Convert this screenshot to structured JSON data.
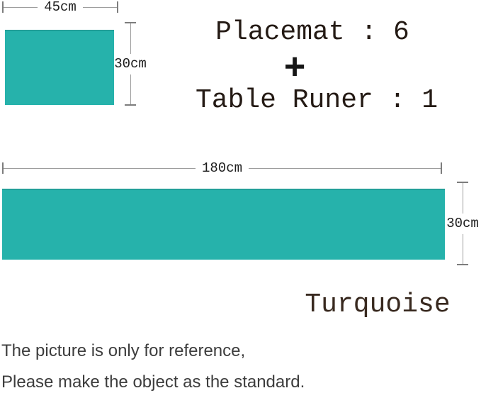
{
  "title_block": {
    "placemat_count": "Placemat : 6",
    "plus_sign": "+",
    "runner_count": "Table Runer : 1"
  },
  "placemat_diagram": {
    "width_label": "45cm",
    "height_label": "30cm"
  },
  "runner_diagram": {
    "length_label": "180cm",
    "height_label": "30cm"
  },
  "color_label": "Turquoise",
  "disclaimer": {
    "line1": "The picture is only for reference,",
    "line2": "Please make the object as the standard."
  },
  "colors": {
    "turquoise": "#26b2ab",
    "dimension_line": "#9d9d9d",
    "heading_text": "#241a14",
    "disclaimer_text": "#3d3d3d"
  }
}
